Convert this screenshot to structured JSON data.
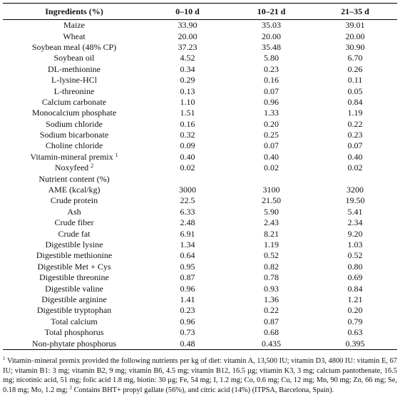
{
  "table": {
    "headers": [
      "Ingredients (%)",
      "0–10 d",
      "10–21 d",
      "21–35 d"
    ],
    "rows": [
      {
        "label": "Maize",
        "values": [
          "33.90",
          "35.03",
          "39.01"
        ]
      },
      {
        "label": "Wheat",
        "values": [
          "20.00",
          "20.00",
          "20.00"
        ]
      },
      {
        "label": "Soybean meal (48% CP)",
        "values": [
          "37.23",
          "35.48",
          "30.90"
        ]
      },
      {
        "label": "Soybean oil",
        "values": [
          "4.52",
          "5.80",
          "6.70"
        ]
      },
      {
        "label": "DL-methionine",
        "values": [
          "0.34",
          "0.23",
          "0.26"
        ]
      },
      {
        "label": "L-lysine-HCl",
        "values": [
          "0.29",
          "0.16",
          "0.11"
        ]
      },
      {
        "label": "L-threonine",
        "values": [
          "0.13",
          "0.07",
          "0.05"
        ]
      },
      {
        "label": "Calcium carbonate",
        "values": [
          "1.10",
          "0.96",
          "0.84"
        ]
      },
      {
        "label": "Monocalcium phosphate",
        "values": [
          "1.51",
          "1.33",
          "1.19"
        ]
      },
      {
        "label": "Sodium chloride",
        "values": [
          "0.16",
          "0.20",
          "0.22"
        ]
      },
      {
        "label": "Sodium bicarbonate",
        "values": [
          "0.32",
          "0.25",
          "0.23"
        ]
      },
      {
        "label": "Choline chloride",
        "values": [
          "0.09",
          "0.07",
          "0.07"
        ]
      },
      {
        "label": "Vitamin-mineral premix",
        "sup": "1",
        "values": [
          "0.40",
          "0.40",
          "0.40"
        ]
      },
      {
        "label": "Noxyfeed",
        "sup": "2",
        "values": [
          "0.02",
          "0.02",
          "0.02"
        ]
      },
      {
        "label": "Nutrient content (%)",
        "values": [
          "",
          "",
          ""
        ]
      },
      {
        "label": "AME (kcal/kg)",
        "values": [
          "3000",
          "3100",
          "3200"
        ]
      },
      {
        "label": "Crude protein",
        "values": [
          "22.5",
          "21.50",
          "19.50"
        ]
      },
      {
        "label": "Ash",
        "values": [
          "6.33",
          "5.90",
          "5.41"
        ]
      },
      {
        "label": "Crude fiber",
        "values": [
          "2.48",
          "2.43",
          "2.34"
        ]
      },
      {
        "label": "Crude fat",
        "values": [
          "6.91",
          "8.21",
          "9.20"
        ]
      },
      {
        "label": "Digestible lysine",
        "values": [
          "1.34",
          "1.19",
          "1.03"
        ]
      },
      {
        "label": "Digestible methionine",
        "values": [
          "0.64",
          "0.52",
          "0.52"
        ]
      },
      {
        "label": "Digestible Met + Cys",
        "values": [
          "0.95",
          "0.82",
          "0.80"
        ]
      },
      {
        "label": "Digestible threonine",
        "values": [
          "0.87",
          "0.78",
          "0.69"
        ]
      },
      {
        "label": "Digestible valine",
        "values": [
          "0.96",
          "0.93",
          "0.84"
        ]
      },
      {
        "label": "Digestible arginine",
        "values": [
          "1.41",
          "1.36",
          "1.21"
        ]
      },
      {
        "label": "Digestible tryptophan",
        "values": [
          "0.23",
          "0.22",
          "0.20"
        ]
      },
      {
        "label": "Total calcium",
        "values": [
          "0.96",
          "0.87",
          "0.79"
        ]
      },
      {
        "label": "Total phosphorus",
        "values": [
          "0.73",
          "0.68",
          "0.63"
        ]
      },
      {
        "label": "Non-phytate phosphorus",
        "values": [
          "0.48",
          "0.435",
          "0.395"
        ]
      }
    ]
  },
  "footnote": {
    "sup1": "1",
    "text1": " Vitamin–mineral premix provided the following nutrients per kg of diet: vitamin A, 13,500 IU; vitamin D3, 4800 IU: vitamin E, 67 IU; vitamin B1: 3 mg; vitamin B2, 9 mg; vitamin B6, 4.5 mg; vitamin B12, 16.5 µg; vitamin K3, 3 mg; calcium pantothenate, 16.5 mg; nicotinic acid, 51 mg; folic acid 1.8 mg, biotin: 30 µg; Fe, 54 mg; I, 1.2 mg; Co, 0.6 mg; Cu, 12 mg; Mn, 90 mg; Zn, 66 mg; Se, 0.18 mg; Mo, 1.2 mg; ",
    "sup2": "2",
    "text2": " Contains BHT+ propyl gallate (56%), and citric acid (14%) (ITPSA, Barcelona, Spain)."
  }
}
